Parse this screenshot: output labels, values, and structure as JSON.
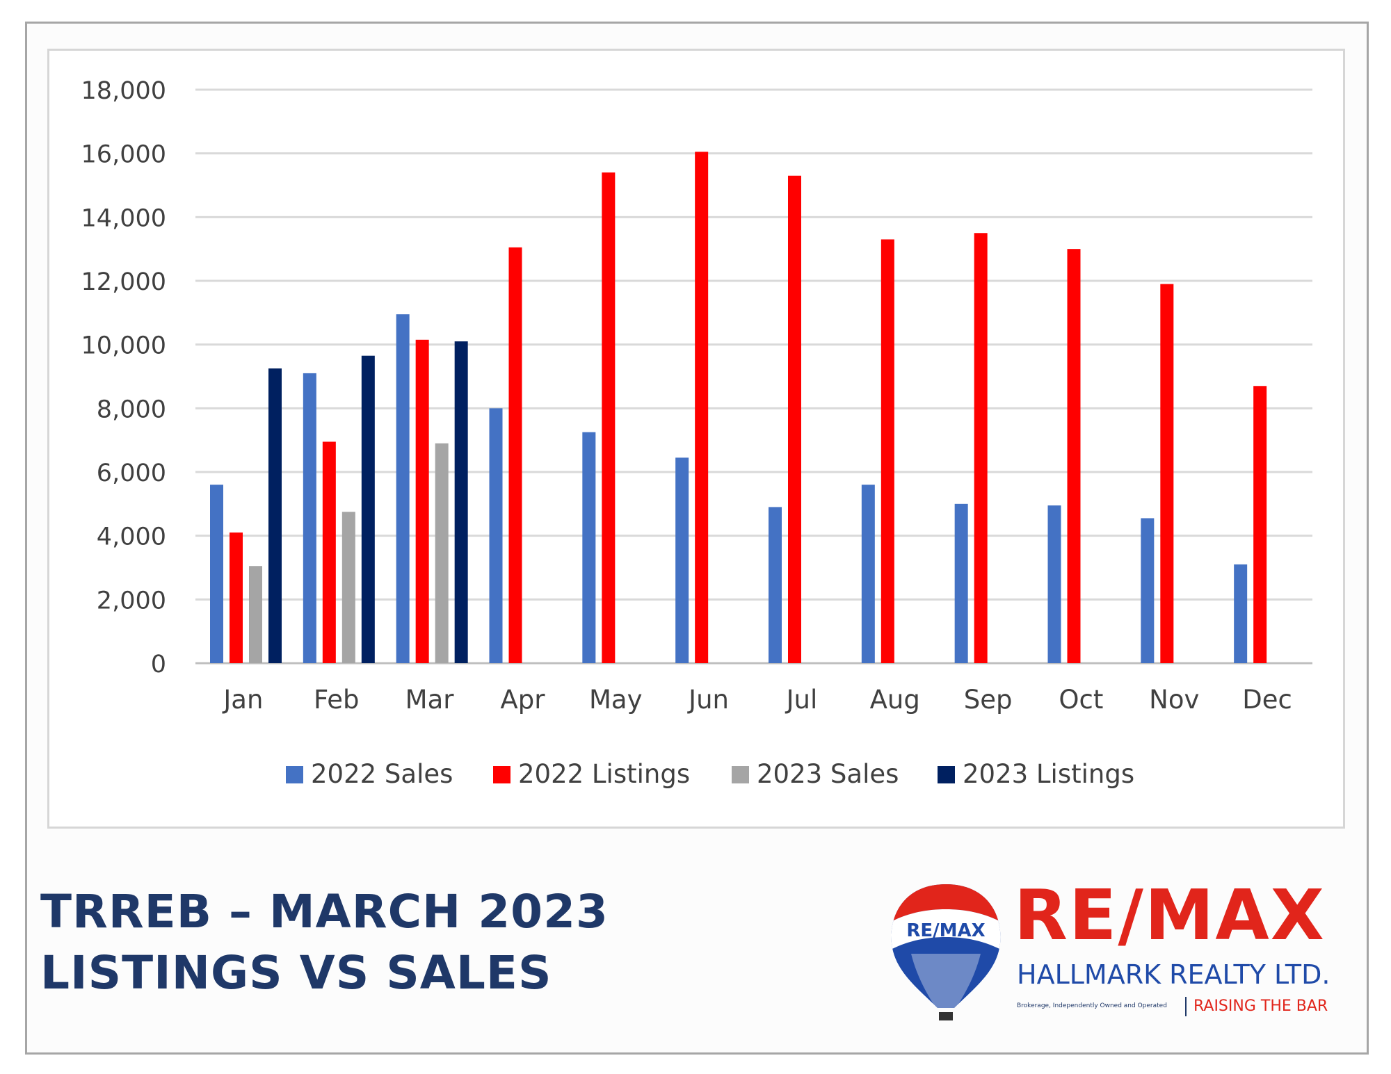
{
  "title": {
    "line1": "TRREB – MARCH 2023",
    "line2": "LISTINGS VS SALES"
  },
  "logo": {
    "balloon_text": "RE/MAX",
    "brand": "RE/MAX",
    "subtitle": "HALLMARK REALTY LTD.",
    "tagline_left": "Brokerage, Independently Owned and Operated",
    "tagline_right": "RAISING THE BAR",
    "colors": {
      "red": "#e1251b",
      "blue": "#1f4aa8",
      "navy": "#1f3868"
    }
  },
  "chart_data": {
    "type": "bar",
    "categories": [
      "Jan",
      "Feb",
      "Mar",
      "Apr",
      "May",
      "Jun",
      "Jul",
      "Aug",
      "Sep",
      "Oct",
      "Nov",
      "Dec"
    ],
    "series": [
      {
        "name": "2022 Sales",
        "color": "#4472c4",
        "values": [
          5600,
          9100,
          10950,
          8000,
          7250,
          6450,
          4900,
          5600,
          5000,
          4950,
          4550,
          3100
        ]
      },
      {
        "name": "2022 Listings",
        "color": "#ff0000",
        "values": [
          4100,
          6950,
          10150,
          13050,
          15400,
          16050,
          15300,
          13300,
          13500,
          13000,
          11900,
          8700
        ]
      },
      {
        "name": "2023 Sales",
        "color": "#a5a5a5",
        "values": [
          3050,
          4750,
          6900,
          null,
          null,
          null,
          null,
          null,
          null,
          null,
          null,
          null
        ]
      },
      {
        "name": "2023 Listings",
        "color": "#002060",
        "values": [
          9250,
          9650,
          10100,
          null,
          null,
          null,
          null,
          null,
          null,
          null,
          null,
          null
        ]
      }
    ],
    "ylim": [
      0,
      18000
    ],
    "yticks": [
      0,
      2000,
      4000,
      6000,
      8000,
      10000,
      12000,
      14000,
      16000,
      18000
    ],
    "ytick_labels": [
      "0",
      "2,000",
      "4,000",
      "6,000",
      "8,000",
      "10,000",
      "12,000",
      "14,000",
      "16,000",
      "18,000"
    ],
    "grid": true,
    "legend": "bottom",
    "title": "",
    "xlabel": "",
    "ylabel": ""
  }
}
